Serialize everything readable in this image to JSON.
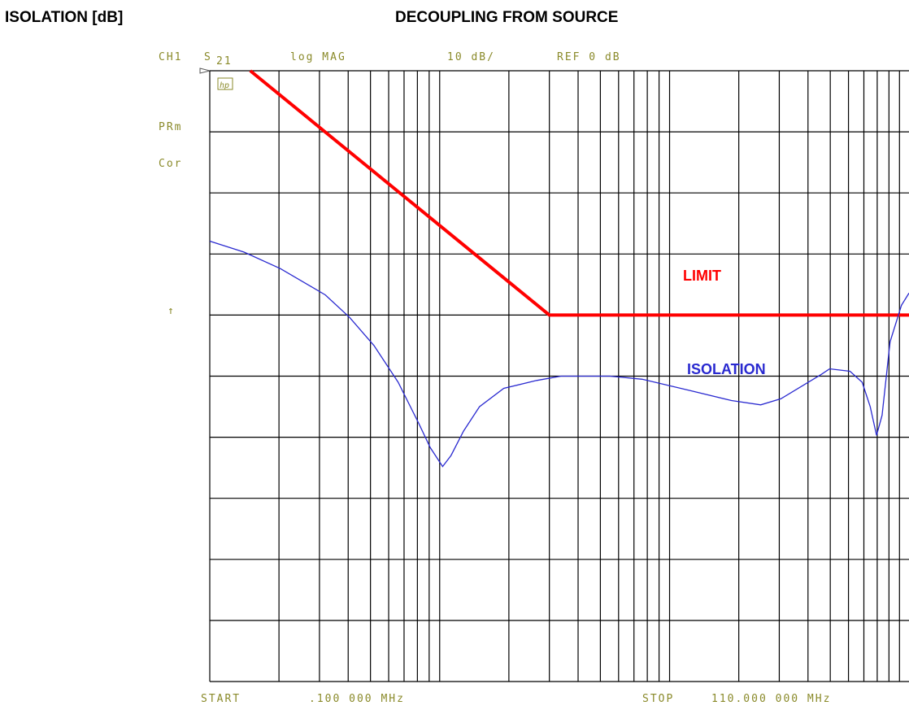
{
  "chart_data": {
    "type": "line",
    "title": "DECOUPLING FROM SOURCE",
    "y_label": "ISOLATION [dB]",
    "annotations": {
      "channel": "CH1",
      "param": "S",
      "param_sub": "21",
      "format": "log MAG",
      "scale": "10 dB/",
      "ref": "REF 0 dB",
      "prm": "PRm",
      "cor": "Cor",
      "ref_arrow": "↑",
      "logo": "hp",
      "start": "START",
      "start_value": ".100 000 MHz",
      "stop": "STOP",
      "stop_value": "110.000 000 MHz"
    },
    "log_x": true,
    "xlim": [
      0.1,
      110
    ],
    "ylim": [
      -100,
      0
    ],
    "xticks": [
      0.1,
      0.2,
      0.3,
      0.4,
      0.5,
      0.6,
      0.7,
      0.8,
      0.9,
      1,
      2,
      3,
      4,
      5,
      6,
      7,
      8,
      9,
      10,
      20,
      30,
      40,
      50,
      60,
      70,
      80,
      90,
      100
    ],
    "yticks": [
      -100,
      -90,
      -80,
      -70,
      -60,
      -50,
      -40,
      -30,
      -20,
      -10,
      0
    ],
    "grid": true,
    "series": [
      {
        "name": "LIMIT",
        "color": "#ff0000",
        "x": [
          0.15,
          3,
          110
        ],
        "values": [
          0,
          -40,
          -40
        ]
      },
      {
        "name": "ISOLATION",
        "color": "#2a2ad0",
        "x": [
          0.1,
          0.141,
          0.203,
          0.318,
          0.406,
          0.518,
          0.66,
          0.81,
          0.91,
          1.03,
          1.12,
          1.27,
          1.49,
          1.9,
          2.64,
          3.37,
          5.5,
          7.6,
          12.4,
          18.6,
          24.9,
          30.5,
          38.9,
          45.8,
          49.7,
          60.9,
          68.8,
          74.6,
          79.5,
          84,
          91,
          102,
          110
        ],
        "values": [
          -27.9,
          -29.7,
          -32.4,
          -36.7,
          -40.4,
          -45,
          -51,
          -57.7,
          -61.7,
          -64.8,
          -63,
          -59,
          -55,
          -52,
          -50.7,
          -50,
          -50,
          -50.5,
          -52.4,
          -54,
          -54.7,
          -53.7,
          -51.3,
          -49.7,
          -48.8,
          -49.2,
          -51,
          -55,
          -59.7,
          -56.4,
          -44.4,
          -38.4,
          -36.4
        ]
      }
    ]
  }
}
